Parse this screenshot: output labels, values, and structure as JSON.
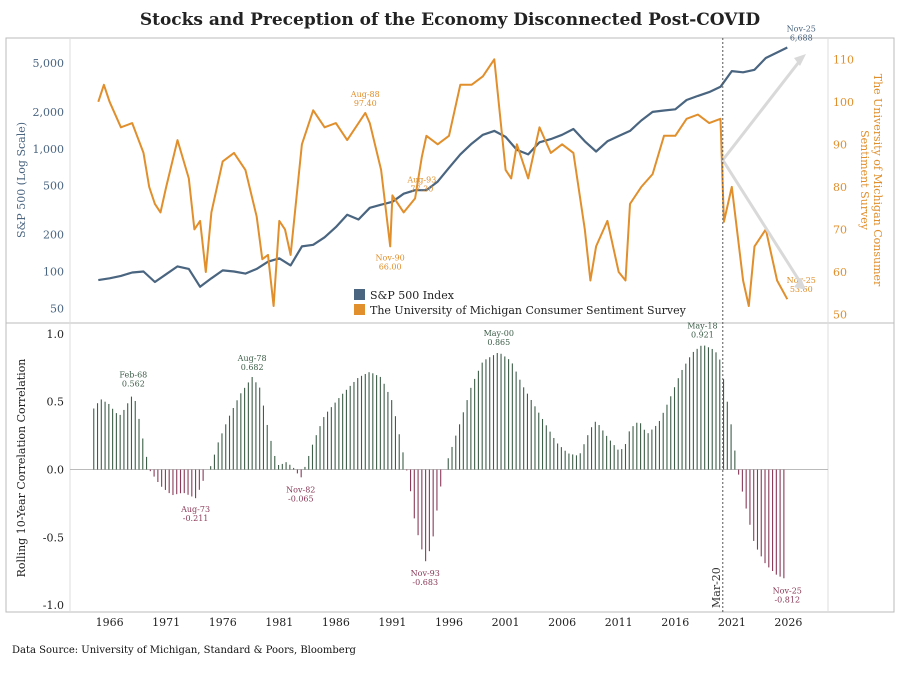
{
  "title": "Stocks and Preception of the Economy Disconnected Post-COVID",
  "source": "Data Source: University of Michigan, Standard & Poors, Bloomberg",
  "colors": {
    "sp": "#4a6580",
    "sentiment": "#e08f2c",
    "pos": "#3d5e48",
    "neg": "#8a3a58",
    "grid": "#cccccc"
  },
  "chart_data": [
    {
      "type": "line",
      "x_range": [
        1962.5,
        2029.5
      ],
      "left_axis": {
        "label": "S&P 500 (Log Scale)",
        "scale": "log",
        "range": [
          38,
          8000
        ],
        "ticks": [
          50,
          100,
          200,
          500,
          1000,
          2000,
          5000
        ],
        "tick_labels": [
          "50",
          "100",
          "200",
          "500",
          "1,000",
          "2,000",
          "5,000"
        ]
      },
      "right_axis": {
        "label": "The University of Michigan Consumer Sentiment Survey",
        "range": [
          48,
          115
        ],
        "ticks": [
          50,
          60,
          70,
          80,
          90,
          100,
          110
        ]
      },
      "legend": {
        "placement": "bottom-center",
        "entries": [
          "S&P 500 Index",
          "The University of Michigan Consumer Sentiment Survey"
        ]
      },
      "series": [
        {
          "name": "S&P 500 Index",
          "axis": "left",
          "x": [
            1965,
            1966,
            1967,
            1968,
            1969,
            1970,
            1971,
            1972,
            1973,
            1974,
            1975,
            1976,
            1977,
            1978,
            1979,
            1980,
            1981,
            1982,
            1983,
            1984,
            1985,
            1986,
            1987,
            1988,
            1989,
            1990,
            1991,
            1992,
            1993,
            1994,
            1995,
            1996,
            1997,
            1998,
            1999,
            2000,
            2001,
            2002,
            2003,
            2004,
            2005,
            2006,
            2007,
            2008,
            2009,
            2010,
            2011,
            2012,
            2013,
            2014,
            2015,
            2016,
            2017,
            2018,
            2019,
            2020,
            2021,
            2022,
            2023,
            2024,
            2025.9
          ],
          "y": [
            85,
            88,
            92,
            98,
            100,
            82,
            95,
            110,
            105,
            75,
            88,
            102,
            100,
            96,
            105,
            120,
            128,
            112,
            160,
            165,
            190,
            230,
            290,
            265,
            330,
            350,
            370,
            430,
            460,
            460,
            540,
            700,
            900,
            1100,
            1300,
            1400,
            1250,
            980,
            900,
            1130,
            1200,
            1300,
            1450,
            1150,
            950,
            1150,
            1270,
            1400,
            1700,
            2000,
            2050,
            2100,
            2500,
            2700,
            2900,
            3200,
            4300,
            4200,
            4400,
            5500,
            6688
          ]
        },
        {
          "name": "The University of Michigan Consumer Sentiment Survey",
          "axis": "right",
          "x": [
            1965,
            1965.5,
            1966,
            1967,
            1968,
            1969,
            1969.5,
            1970,
            1970.5,
            1971,
            1972,
            1973,
            1973.5,
            1974,
            1974.5,
            1975,
            1976,
            1977,
            1978,
            1979,
            1979.5,
            1980,
            1980.5,
            1981,
            1981.5,
            1982,
            1983,
            1984,
            1985,
            1986,
            1987,
            1988.6,
            1989,
            1990,
            1990.8,
            1991,
            1992,
            1993,
            1993.6,
            1994,
            1995,
            1996,
            1997,
            1998,
            1999,
            2000,
            2001,
            2001.5,
            2002,
            2003,
            2004,
            2005,
            2006,
            2007,
            2008,
            2008.5,
            2009,
            2010,
            2011,
            2011.6,
            2012,
            2013,
            2014,
            2015,
            2016,
            2017,
            2018,
            2019,
            2020,
            2020.3,
            2021,
            2022,
            2022.5,
            2023,
            2024,
            2025,
            2025.9
          ],
          "y": [
            100,
            104,
            100,
            94,
            95,
            88,
            80,
            76,
            74,
            80,
            91,
            82,
            70,
            72,
            60,
            74,
            86,
            88,
            84,
            73,
            63,
            64,
            52,
            72,
            70,
            64,
            90,
            98,
            94,
            95,
            91,
            97.4,
            95,
            84,
            66,
            78,
            74,
            77.3,
            87,
            92,
            90,
            92,
            104,
            104,
            106,
            110,
            84,
            82,
            90,
            82,
            94,
            88,
            90,
            88,
            70,
            58,
            66,
            72,
            60,
            58,
            76,
            80,
            83,
            92,
            92,
            96,
            97,
            95,
            96,
            71.8,
            80,
            58,
            52,
            66,
            70,
            58,
            53.6
          ]
        }
      ],
      "annotations": [
        {
          "label": "Aug-88",
          "value": "97.40",
          "x": 1988.6,
          "y": 97.4,
          "axis": "right"
        },
        {
          "label": "Nov-90",
          "value": "66.00",
          "x": 1990.8,
          "y": 66.0,
          "axis": "right"
        },
        {
          "label": "Aug-93",
          "value": "77.30",
          "x": 1993.6,
          "y": 77.3,
          "axis": "right"
        },
        {
          "label": "Nov-25",
          "value": "6,688",
          "x": 2025.9,
          "y": 6688,
          "axis": "left"
        },
        {
          "label": "Nov-25",
          "value": "53.60",
          "x": 2025.9,
          "y": 53.6,
          "axis": "right"
        }
      ],
      "marker": {
        "label": "Mar-20",
        "x": 2020.2
      }
    },
    {
      "type": "bar",
      "ylabel": "Rolling 10-Year Correlation Correlation",
      "ylim": [
        -1.05,
        1.08
      ],
      "y_ticks": [
        -1.0,
        -0.5,
        0.0,
        0.5,
        1.0
      ],
      "y_tick_labels": [
        "-1.0",
        "-0.5",
        "0.0",
        "0.5",
        "1.0"
      ],
      "x_ticks": [
        1966,
        1971,
        1976,
        1981,
        1986,
        1991,
        1996,
        2001,
        2006,
        2011,
        2016,
        2021,
        2026
      ],
      "keypoints": [
        [
          1964.6,
          0.45
        ],
        [
          1965.2,
          0.52
        ],
        [
          1966,
          0.48
        ],
        [
          1966.5,
          0.42
        ],
        [
          1967,
          0.4
        ],
        [
          1968.1,
          0.562
        ],
        [
          1968.4,
          0.46
        ],
        [
          1969,
          0.2
        ],
        [
          1969.5,
          0.0
        ],
        [
          1970,
          -0.06
        ],
        [
          1970.5,
          -0.12
        ],
        [
          1971.5,
          -0.19
        ],
        [
          1972.5,
          -0.17
        ],
        [
          1973.6,
          -0.211
        ],
        [
          1974.2,
          -0.1
        ],
        [
          1974.6,
          0.0
        ],
        [
          1975,
          0.03
        ],
        [
          1975.5,
          0.18
        ],
        [
          1976.5,
          0.38
        ],
        [
          1977.5,
          0.55
        ],
        [
          1978.6,
          0.682
        ],
        [
          1979.3,
          0.6
        ],
        [
          1980,
          0.3
        ],
        [
          1980.6,
          0.1
        ],
        [
          1981,
          0.02
        ],
        [
          1981.5,
          0.06
        ],
        [
          1982.2,
          0.02
        ],
        [
          1982.9,
          -0.065
        ],
        [
          1983.4,
          0.05
        ],
        [
          1984,
          0.2
        ],
        [
          1985,
          0.4
        ],
        [
          1986.5,
          0.55
        ],
        [
          1988,
          0.68
        ],
        [
          1989,
          0.72
        ],
        [
          1990,
          0.68
        ],
        [
          1991,
          0.5
        ],
        [
          1991.5,
          0.3
        ],
        [
          1992,
          0.1
        ],
        [
          1992.5,
          -0.1
        ],
        [
          1993,
          -0.4
        ],
        [
          1993.9,
          -0.683
        ],
        [
          1994.5,
          -0.55
        ],
        [
          1995.2,
          -0.15
        ],
        [
          1995.6,
          0.0
        ],
        [
          1996,
          0.1
        ],
        [
          1997,
          0.35
        ],
        [
          1998,
          0.62
        ],
        [
          1999,
          0.8
        ],
        [
          2000.4,
          0.865
        ],
        [
          2001.5,
          0.8
        ],
        [
          2002.5,
          0.62
        ],
        [
          2003.5,
          0.48
        ],
        [
          2004.5,
          0.34
        ],
        [
          2005.5,
          0.2
        ],
        [
          2006.5,
          0.12
        ],
        [
          2007.5,
          0.1
        ],
        [
          2008.5,
          0.3
        ],
        [
          2009,
          0.36
        ],
        [
          2010,
          0.24
        ],
        [
          2011,
          0.14
        ],
        [
          2011.5,
          0.16
        ],
        [
          2012,
          0.3
        ],
        [
          2012.8,
          0.36
        ],
        [
          2013.5,
          0.26
        ],
        [
          2014.5,
          0.34
        ],
        [
          2015.5,
          0.52
        ],
        [
          2016.5,
          0.72
        ],
        [
          2017.5,
          0.86
        ],
        [
          2018.4,
          0.921
        ],
        [
          2019.5,
          0.88
        ],
        [
          2020,
          0.8
        ],
        [
          2020.5,
          0.55
        ],
        [
          2021,
          0.3
        ],
        [
          2021.5,
          0.0
        ],
        [
          2022.3,
          -0.3
        ],
        [
          2023,
          -0.55
        ],
        [
          2024,
          -0.7
        ],
        [
          2025,
          -0.78
        ],
        [
          2025.9,
          -0.812
        ]
      ],
      "annotations": [
        {
          "label": "Feb-68",
          "value": "0.562",
          "x": 1968.1,
          "y": 0.562
        },
        {
          "label": "Aug-73",
          "value": "-0.211",
          "x": 1973.6,
          "y": -0.211
        },
        {
          "label": "Aug-78",
          "value": "0.682",
          "x": 1978.6,
          "y": 0.682
        },
        {
          "label": "Nov-82",
          "value": "-0.065",
          "x": 1982.9,
          "y": -0.065
        },
        {
          "label": "Nov-93",
          "value": "-0.683",
          "x": 1993.9,
          "y": -0.683
        },
        {
          "label": "May-00",
          "value": "0.865",
          "x": 2000.4,
          "y": 0.865
        },
        {
          "label": "May-18",
          "value": "0.921",
          "x": 2018.4,
          "y": 0.921
        },
        {
          "label": "Nov-25",
          "value": "-0.812",
          "x": 2025.9,
          "y": -0.812
        }
      ]
    }
  ]
}
